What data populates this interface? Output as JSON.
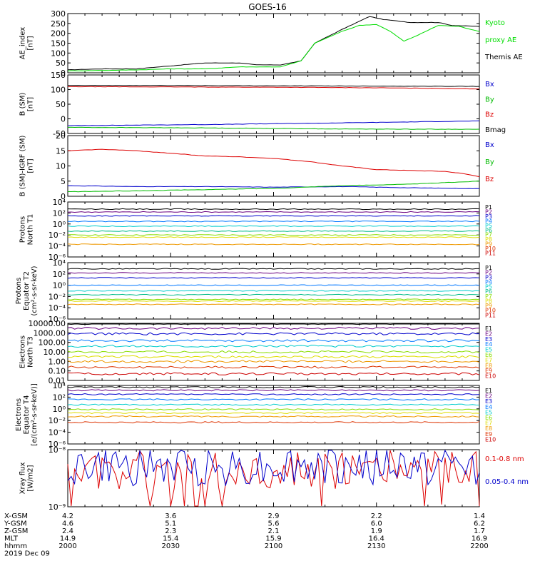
{
  "title": "GOES-16",
  "panels": [
    {
      "id": "ae",
      "ylabel": [
        "AE_index",
        "[nT]"
      ],
      "ticks": [
        "300",
        "250",
        "200",
        "150",
        "100",
        "50",
        "0"
      ],
      "legend": [
        {
          "text": "Kyoto",
          "color": "#00dd00"
        },
        {
          "text": "proxy AE",
          "color": "#00dd00"
        },
        {
          "text": "Themis AE",
          "color": "#000000"
        }
      ]
    },
    {
      "id": "bsm",
      "ylabel": [
        "B (SM)",
        "[nT]"
      ],
      "ticks": [
        "150",
        "100",
        "50",
        "0",
        "-50"
      ],
      "legend": [
        {
          "text": "Bx",
          "color": "#0000cc"
        },
        {
          "text": "By",
          "color": "#00bb00"
        },
        {
          "text": "Bz",
          "color": "#dd0000"
        },
        {
          "text": "Bmag",
          "color": "#000000"
        }
      ]
    },
    {
      "id": "bigrf",
      "ylabel": [
        "B (SM)-IGRF (SM)",
        "[nT]"
      ],
      "ticks": [
        "20",
        "15",
        "10",
        "5",
        "0"
      ],
      "legend": [
        {
          "text": "Bx",
          "color": "#0000cc"
        },
        {
          "text": "By",
          "color": "#00bb00"
        },
        {
          "text": "Bz",
          "color": "#dd0000"
        }
      ]
    },
    {
      "id": "pn",
      "ylabel": [
        "Protons",
        "North T1"
      ],
      "ticks": [
        "10⁴",
        "10²",
        "10⁰",
        "10⁻²",
        "10⁻⁴",
        "10⁻⁶"
      ],
      "legend": [
        {
          "text": "P1",
          "color": "#000000"
        },
        {
          "text": "P2",
          "color": "#6a0080"
        },
        {
          "text": "P3",
          "color": "#0000cc"
        },
        {
          "text": "P4",
          "color": "#0077ff"
        },
        {
          "text": "P5",
          "color": "#00cccc"
        },
        {
          "text": "P6",
          "color": "#00bb88"
        },
        {
          "text": "P7",
          "color": "#88dd00"
        },
        {
          "text": "P8",
          "color": "#dddd00"
        },
        {
          "text": "P9",
          "color": "#ee9900"
        },
        {
          "text": "P10",
          "color": "#dd3300"
        },
        {
          "text": "P11",
          "color": "#cc0000"
        }
      ]
    },
    {
      "id": "pe",
      "ylabel": [
        "Protons",
        "Equator T2",
        "(cm²-s-sr-keV)"
      ],
      "ticks": [
        "10⁴",
        "10²",
        "10⁰",
        "10⁻²",
        "10⁻⁴",
        "10⁻⁶"
      ],
      "legend": [
        {
          "text": "P1",
          "color": "#000000"
        },
        {
          "text": "P2",
          "color": "#6a0080"
        },
        {
          "text": "P3",
          "color": "#0000cc"
        },
        {
          "text": "P4",
          "color": "#0077ff"
        },
        {
          "text": "P5",
          "color": "#00cccc"
        },
        {
          "text": "P6",
          "color": "#00bb88"
        },
        {
          "text": "P7",
          "color": "#88dd00"
        },
        {
          "text": "P8",
          "color": "#dddd00"
        },
        {
          "text": "P9",
          "color": "#ee9900"
        },
        {
          "text": "P10",
          "color": "#dd3300"
        },
        {
          "text": "P11",
          "color": "#cc0000"
        }
      ]
    },
    {
      "id": "en",
      "ylabel": [
        "Electrons",
        "North T3"
      ],
      "ticks": [
        "10000.00",
        "1000.00",
        "100.00",
        "10.00",
        "1.00",
        "0.10",
        "0.01"
      ],
      "legend": [
        {
          "text": "E1",
          "color": "#000000"
        },
        {
          "text": "E2",
          "color": "#6a0080"
        },
        {
          "text": "E3",
          "color": "#0000cc"
        },
        {
          "text": "E4",
          "color": "#0077ff"
        },
        {
          "text": "E5",
          "color": "#00cccc"
        },
        {
          "text": "E6",
          "color": "#88dd00"
        },
        {
          "text": "E7",
          "color": "#dddd00"
        },
        {
          "text": "E8",
          "color": "#ee9900"
        },
        {
          "text": "E9",
          "color": "#dd3300"
        },
        {
          "text": "E10",
          "color": "#cc0000"
        }
      ]
    },
    {
      "id": "ee",
      "ylabel": [
        "Electrons",
        "Equator T4",
        "[e/(cm²-s-sr-keV)]"
      ],
      "ticks": [
        "10⁴",
        "10²",
        "10⁰",
        "10⁻²",
        "10⁻⁴",
        "10⁻⁶"
      ],
      "legend": [
        {
          "text": "E1",
          "color": "#000000"
        },
        {
          "text": "E2",
          "color": "#6a0080"
        },
        {
          "text": "E3",
          "color": "#0000cc"
        },
        {
          "text": "E4",
          "color": "#0077ff"
        },
        {
          "text": "E5",
          "color": "#00cccc"
        },
        {
          "text": "E6",
          "color": "#88dd00"
        },
        {
          "text": "E7",
          "color": "#dddd00"
        },
        {
          "text": "E8",
          "color": "#ee9900"
        },
        {
          "text": "E9",
          "color": "#dd3300"
        },
        {
          "text": "E10",
          "color": "#cc0000"
        }
      ]
    },
    {
      "id": "xray",
      "ylabel": [
        "Xray flux",
        "[W/m2]"
      ],
      "ticks": [
        "10⁻⁸",
        "10⁻⁹"
      ],
      "legend": [
        {
          "text": "0.1-0.8 nm",
          "color": "#dd0000"
        },
        {
          "text": "0.05-0.4 nm",
          "color": "#0000cc"
        }
      ]
    }
  ],
  "footer": {
    "rows": [
      {
        "label": "X-GSM",
        "values": [
          "4.2",
          "3.6",
          "2.9",
          "2.2",
          "1.4"
        ]
      },
      {
        "label": "Y-GSM",
        "values": [
          "4.6",
          "5.1",
          "5.6",
          "6.0",
          "6.2"
        ]
      },
      {
        "label": "Z-GSM",
        "values": [
          "2.4",
          "2.3",
          "2.1",
          "1.9",
          "1.7"
        ]
      },
      {
        "label": "MLT",
        "values": [
          "14.9",
          "15.4",
          "15.9",
          "16.4",
          "16.9"
        ]
      },
      {
        "label": "hhmm",
        "values": [
          "2000",
          "2030",
          "2100",
          "2130",
          "2200"
        ]
      }
    ],
    "date": "2019 Dec 09"
  },
  "chart_data": {
    "type": "line",
    "title": "GOES-16",
    "x_unit": "hhmm",
    "x_ticks": [
      "2000",
      "2030",
      "2100",
      "2130",
      "2200"
    ],
    "x_range": [
      "2000",
      "2200"
    ],
    "panels": [
      {
        "id": "ae",
        "ylim": [
          0,
          300
        ],
        "series": [
          {
            "name": "Themis AE",
            "color": "#000000",
            "x": [
              0,
              10,
              20,
              30,
              40,
              50,
              55,
              62,
              68,
              72,
              80,
              88,
              92,
              100,
              108,
              112,
              120
            ],
            "y": [
              15,
              20,
              20,
              35,
              50,
              50,
              40,
              40,
              60,
              150,
              220,
              285,
              270,
              255,
              255,
              240,
              235
            ]
          },
          {
            "name": "Kyoto proxy AE",
            "color": "#00dd00",
            "x": [
              0,
              10,
              20,
              30,
              40,
              50,
              55,
              62,
              68,
              72,
              80,
              85,
              90,
              94,
              98,
              102,
              108,
              114,
              120
            ],
            "y": [
              10,
              12,
              15,
              20,
              20,
              30,
              30,
              30,
              60,
              150,
              210,
              240,
              245,
              210,
              160,
              190,
              240,
              235,
              210
            ]
          }
        ]
      },
      {
        "id": "bsm",
        "ylim": [
          -60,
          150
        ],
        "series": [
          {
            "name": "Bx",
            "color": "#0000cc",
            "x": [
              0,
              40,
              80,
              120
            ],
            "y": [
              -32,
              -28,
              -22,
              -15
            ]
          },
          {
            "name": "By",
            "color": "#00bb00",
            "x": [
              0,
              40,
              80,
              120
            ],
            "y": [
              -38,
              -40,
              -44,
              -45
            ]
          },
          {
            "name": "Bz",
            "color": "#dd0000",
            "x": [
              0,
              30,
              60,
              90,
              120
            ],
            "y": [
              108,
              107,
              106,
              104,
              100
            ]
          },
          {
            "name": "Bmag",
            "color": "#000000",
            "x": [
              0,
              30,
              60,
              90,
              120
            ],
            "y": [
              112,
              112,
              111,
              110,
              109
            ]
          }
        ]
      },
      {
        "id": "bigrf",
        "ylim": [
          0,
          20
        ],
        "series": [
          {
            "name": "Bx",
            "color": "#0000cc",
            "x": [
              0,
              20,
              40,
              60,
              80,
              100,
              120
            ],
            "y": [
              3.5,
              3.2,
              3.2,
              3.0,
              3.2,
              2.8,
              2.5
            ]
          },
          {
            "name": "By",
            "color": "#00bb00",
            "x": [
              0,
              20,
              40,
              60,
              80,
              100,
              120
            ],
            "y": [
              1.5,
              1.8,
              2.2,
              2.6,
              3.5,
              4.0,
              5.0
            ]
          },
          {
            "name": "Bz",
            "color": "#dd0000",
            "x": [
              0,
              10,
              20,
              30,
              40,
              50,
              60,
              70,
              80,
              90,
              100,
              110,
              115,
              120
            ],
            "y": [
              15,
              15.5,
              15,
              14.2,
              13.3,
              13,
              12.5,
              11.5,
              10,
              8.8,
              8.5,
              8.2,
              7.5,
              6.5
            ]
          }
        ]
      },
      {
        "id": "pn",
        "yscale": "log",
        "ylim": [
          1e-06,
          10000.0
        ],
        "series": [
          {
            "name": "P1",
            "color": "#000000",
            "value": 500
          },
          {
            "name": "P2",
            "color": "#6a0080",
            "value": 150
          },
          {
            "name": "P3",
            "color": "#0000cc",
            "value": 30
          },
          {
            "name": "P4",
            "color": "#0077ff",
            "value": 3
          },
          {
            "name": "P5",
            "color": "#00cccc",
            "value": 0.4
          },
          {
            "name": "P6",
            "color": "#00bb88",
            "value": 0.05
          },
          {
            "name": "P7",
            "color": "#88dd00",
            "value": 0.01
          },
          {
            "name": "P8",
            "color": "#dddd00",
            "value": 0.004
          },
          {
            "name": "P9",
            "color": "#ee9900",
            "value": 0.0002
          }
        ]
      },
      {
        "id": "pe",
        "yscale": "log",
        "ylim": [
          1e-06,
          10000.0
        ],
        "series": [
          {
            "name": "P1",
            "color": "#000000",
            "value": 800
          },
          {
            "name": "P2",
            "color": "#6a0080",
            "value": 150
          },
          {
            "name": "P3",
            "color": "#0000cc",
            "value": 20
          },
          {
            "name": "P4",
            "color": "#0077ff",
            "value": 1
          },
          {
            "name": "P5",
            "color": "#00cccc",
            "value": 0.1
          },
          {
            "name": "P6",
            "color": "#00bb88",
            "value": 0.02
          },
          {
            "name": "P7",
            "color": "#88dd00",
            "value": 0.003
          },
          {
            "name": "P8",
            "color": "#dddd00",
            "value": 0.0015
          },
          {
            "name": "P9",
            "color": "#ee9900",
            "value": 0.0004
          }
        ]
      },
      {
        "id": "en",
        "yscale": "log",
        "ylim": [
          0.01,
          10000
        ],
        "series": [
          {
            "name": "E1",
            "color": "#000000",
            "value": 10000
          },
          {
            "name": "E2",
            "color": "#6a0080",
            "value": 3000
          },
          {
            "name": "E3",
            "color": "#0000cc",
            "value": 800
          },
          {
            "name": "E4",
            "color": "#0077ff",
            "value": 150
          },
          {
            "name": "E5",
            "color": "#00cccc",
            "value": 40
          },
          {
            "name": "E6",
            "color": "#88dd00",
            "value": 10
          },
          {
            "name": "E7",
            "color": "#dddd00",
            "value": 3
          },
          {
            "name": "E8",
            "color": "#ee9900",
            "value": 1
          },
          {
            "name": "E9",
            "color": "#dd3300",
            "value": 0.25
          },
          {
            "name": "E10",
            "color": "#cc0000",
            "value": 0.05
          }
        ]
      },
      {
        "id": "ee",
        "yscale": "log",
        "ylim": [
          1e-06,
          10000.0
        ],
        "series": [
          {
            "name": "E1",
            "color": "#000000",
            "value": 5000
          },
          {
            "name": "E2",
            "color": "#6a0080",
            "value": 1500
          },
          {
            "name": "E3",
            "color": "#0000cc",
            "value": 300
          },
          {
            "name": "E4",
            "color": "#0077ff",
            "value": 40
          },
          {
            "name": "E5",
            "color": "#00cccc",
            "value": 5
          },
          {
            "name": "E6",
            "color": "#88dd00",
            "value": 0.8
          },
          {
            "name": "E7",
            "color": "#dddd00",
            "value": 0.2
          },
          {
            "name": "E8",
            "color": "#ee9900",
            "value": 0.05
          },
          {
            "name": "E9",
            "color": "#dd3300",
            "value": 0.005
          }
        ]
      },
      {
        "id": "xray",
        "yscale": "log",
        "ylim": [
          1e-09,
          1e-08
        ],
        "series": [
          {
            "name": "0.1-0.8 nm",
            "color": "#dd0000",
            "value": 4.5e-09
          },
          {
            "name": "0.05-0.4 nm",
            "color": "#0000cc",
            "value": 5e-09
          }
        ]
      }
    ]
  }
}
